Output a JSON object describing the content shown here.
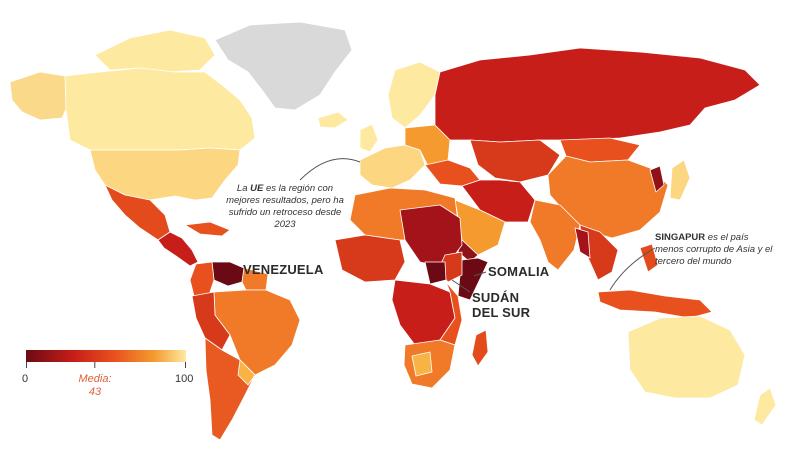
{
  "colors": {
    "scale_low": "#6b0a14",
    "scale_mid_low": "#c81e1a",
    "scale_mid": "#e8501e",
    "scale_mid_high": "#f59a2e",
    "scale_high": "#fde9a0",
    "no_data": "#d9d9d9",
    "accent_media": "#e0613a"
  },
  "annotations": {
    "eu_note": {
      "bold": "UE",
      "pre": "La ",
      "post": " es la región con mejores resultados, pero ha sufrido un retroceso desde 2023"
    },
    "venezuela": "VENEZUELA",
    "somalia": "SOMALIA",
    "sudan_sur_line1": "SUDÁN",
    "sudan_sur_line2": "DEL SUR",
    "singapur_bold": "SINGAPUR",
    "singapur_rest": " es el país menos corrupto de Asia y el tercero del mundo"
  },
  "legend": {
    "min_label": "0",
    "max_label": "100",
    "media_label": "Media:",
    "media_value": "43",
    "min": 0,
    "max": 100,
    "media": 43
  }
}
